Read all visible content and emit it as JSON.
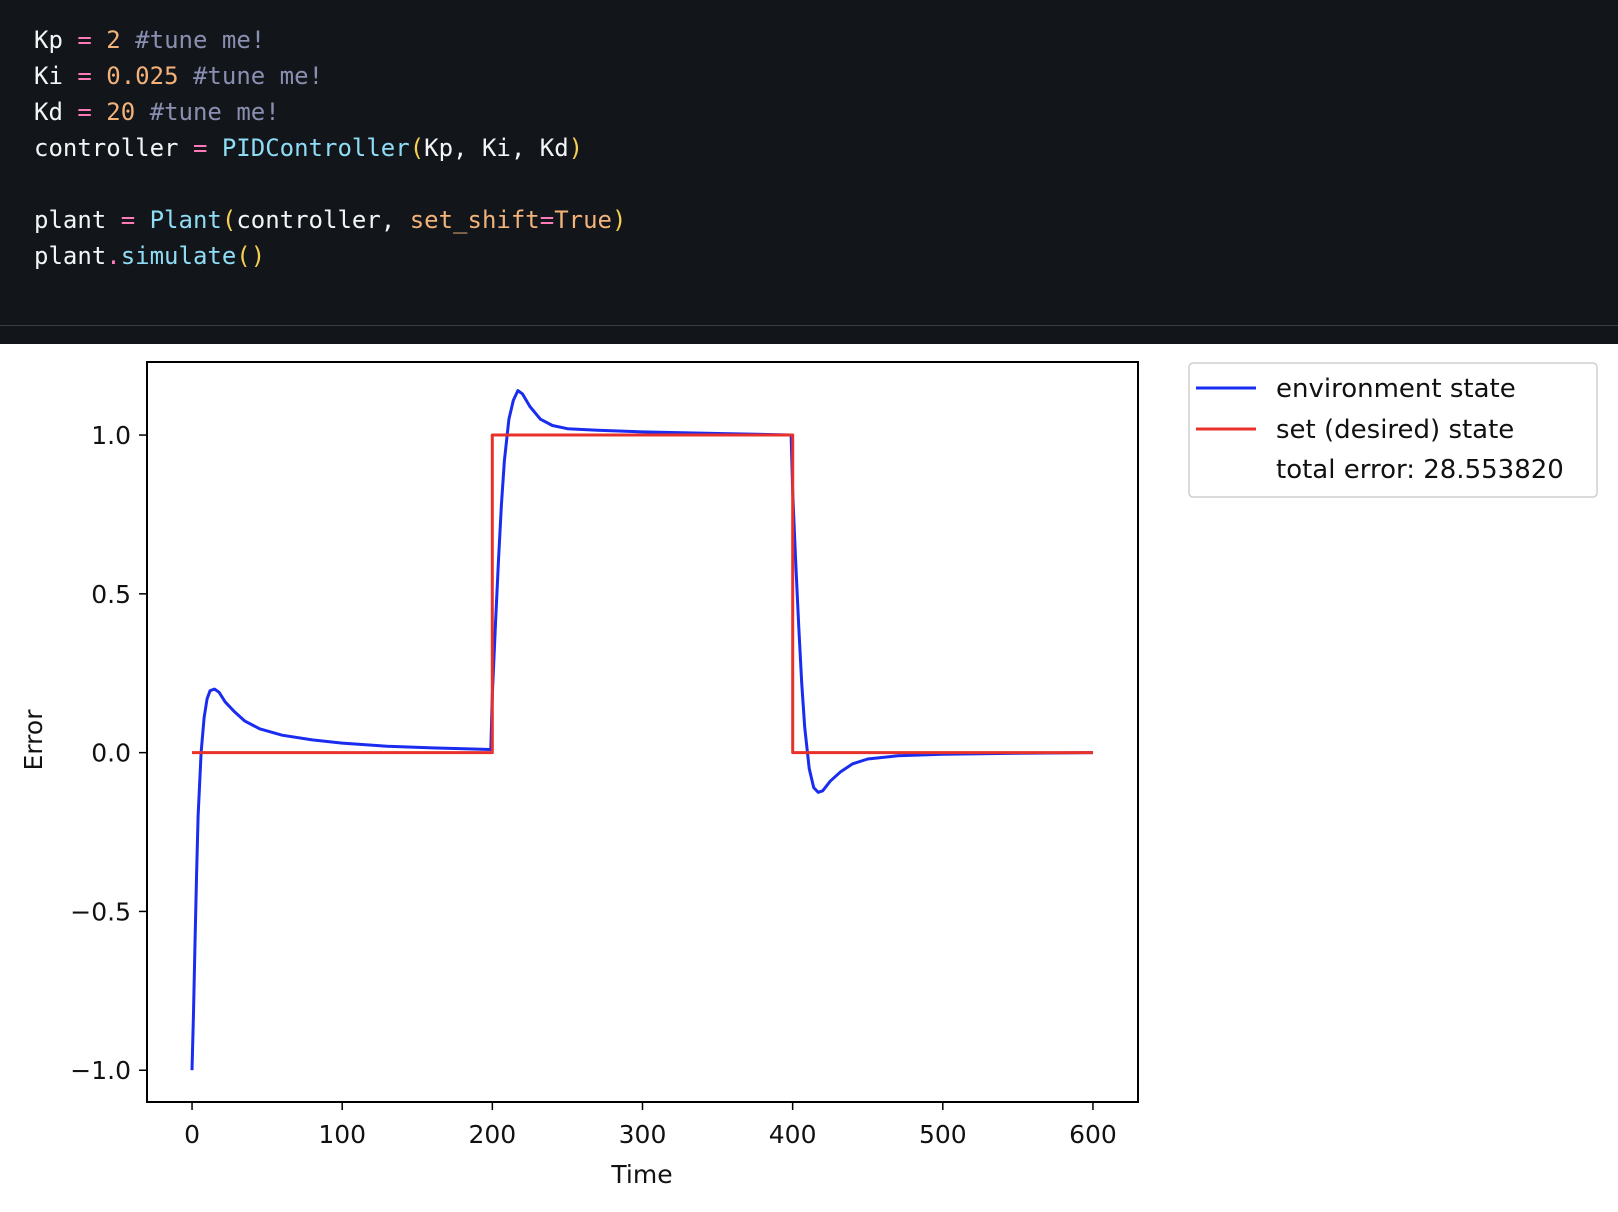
{
  "code": {
    "lines": [
      [
        {
          "t": "Kp",
          "c": "id"
        },
        {
          "t": " ",
          "c": "id"
        },
        {
          "t": "=",
          "c": "op"
        },
        {
          "t": " ",
          "c": "id"
        },
        {
          "t": "2",
          "c": "num"
        },
        {
          "t": " ",
          "c": "id"
        },
        {
          "t": "#tune me!",
          "c": "com"
        }
      ],
      [
        {
          "t": "Ki",
          "c": "id"
        },
        {
          "t": " ",
          "c": "id"
        },
        {
          "t": "=",
          "c": "op"
        },
        {
          "t": " ",
          "c": "id"
        },
        {
          "t": "0.025",
          "c": "num"
        },
        {
          "t": " ",
          "c": "id"
        },
        {
          "t": "#tune me!",
          "c": "com"
        }
      ],
      [
        {
          "t": "Kd",
          "c": "id"
        },
        {
          "t": " ",
          "c": "id"
        },
        {
          "t": "=",
          "c": "op"
        },
        {
          "t": " ",
          "c": "id"
        },
        {
          "t": "20",
          "c": "num"
        },
        {
          "t": " ",
          "c": "id"
        },
        {
          "t": "#tune me!",
          "c": "com"
        }
      ],
      [
        {
          "t": "controller",
          "c": "id"
        },
        {
          "t": " ",
          "c": "id"
        },
        {
          "t": "=",
          "c": "op"
        },
        {
          "t": " ",
          "c": "id"
        },
        {
          "t": "PIDController",
          "c": "fn"
        },
        {
          "t": "(",
          "c": "par"
        },
        {
          "t": "Kp, Ki, Kd",
          "c": "id"
        },
        {
          "t": ")",
          "c": "par"
        }
      ],
      [],
      [
        {
          "t": "plant",
          "c": "id"
        },
        {
          "t": " ",
          "c": "id"
        },
        {
          "t": "=",
          "c": "op"
        },
        {
          "t": " ",
          "c": "id"
        },
        {
          "t": "Plant",
          "c": "fn"
        },
        {
          "t": "(",
          "c": "par"
        },
        {
          "t": "controller, ",
          "c": "id"
        },
        {
          "t": "set_shift",
          "c": "kw"
        },
        {
          "t": "=",
          "c": "op"
        },
        {
          "t": "True",
          "c": "kw"
        },
        {
          "t": ")",
          "c": "par"
        }
      ],
      [
        {
          "t": "plant",
          "c": "id"
        },
        {
          "t": ".",
          "c": "op"
        },
        {
          "t": "simulate",
          "c": "fn"
        },
        {
          "t": "()",
          "c": "par"
        }
      ]
    ]
  },
  "chart_data": {
    "type": "line",
    "xlabel": "Time",
    "ylabel": "Error",
    "xlim": [
      -30,
      630
    ],
    "ylim": [
      -1.1,
      1.23
    ],
    "xticks": [
      0,
      100,
      200,
      300,
      400,
      500,
      600
    ],
    "xtick_labels": [
      "0",
      "100",
      "200",
      "300",
      "400",
      "500",
      "600"
    ],
    "yticks": [
      -1.0,
      -0.5,
      0.0,
      0.5,
      1.0
    ],
    "ytick_labels": [
      "−1.0",
      "−0.5",
      "0.0",
      "0.5",
      "1.0"
    ],
    "grid": false,
    "legend_position": "outside-right",
    "series": [
      {
        "name": "environment state",
        "color": "#1a2cf0",
        "x": [
          0,
          1,
          2,
          3,
          4,
          6,
          8,
          10,
          12,
          15,
          18,
          22,
          28,
          35,
          45,
          60,
          80,
          100,
          130,
          160,
          199,
          200,
          202,
          204,
          206,
          208,
          211,
          214,
          217,
          220,
          225,
          232,
          240,
          250,
          270,
          300,
          350,
          399,
          400,
          402,
          404,
          406,
          408,
          411,
          414,
          417,
          420,
          425,
          432,
          440,
          450,
          470,
          500,
          550,
          600
        ],
        "y": [
          -1.0,
          -0.82,
          -0.6,
          -0.38,
          -0.2,
          0.0,
          0.11,
          0.17,
          0.195,
          0.2,
          0.19,
          0.16,
          0.13,
          0.1,
          0.075,
          0.055,
          0.04,
          0.03,
          0.02,
          0.015,
          0.01,
          0.18,
          0.4,
          0.6,
          0.78,
          0.92,
          1.05,
          1.11,
          1.14,
          1.13,
          1.09,
          1.05,
          1.03,
          1.02,
          1.015,
          1.01,
          1.005,
          1.0,
          0.82,
          0.6,
          0.4,
          0.22,
          0.08,
          -0.05,
          -0.11,
          -0.125,
          -0.12,
          -0.09,
          -0.06,
          -0.035,
          -0.02,
          -0.01,
          -0.005,
          -0.002,
          0.0
        ]
      },
      {
        "name": "set (desired) state",
        "color": "#e8312a",
        "x": [
          0,
          200,
          200,
          400,
          400,
          600
        ],
        "y": [
          0,
          0,
          1,
          1,
          0,
          0
        ]
      }
    ],
    "legend_extra": "total error: 28.553820"
  }
}
